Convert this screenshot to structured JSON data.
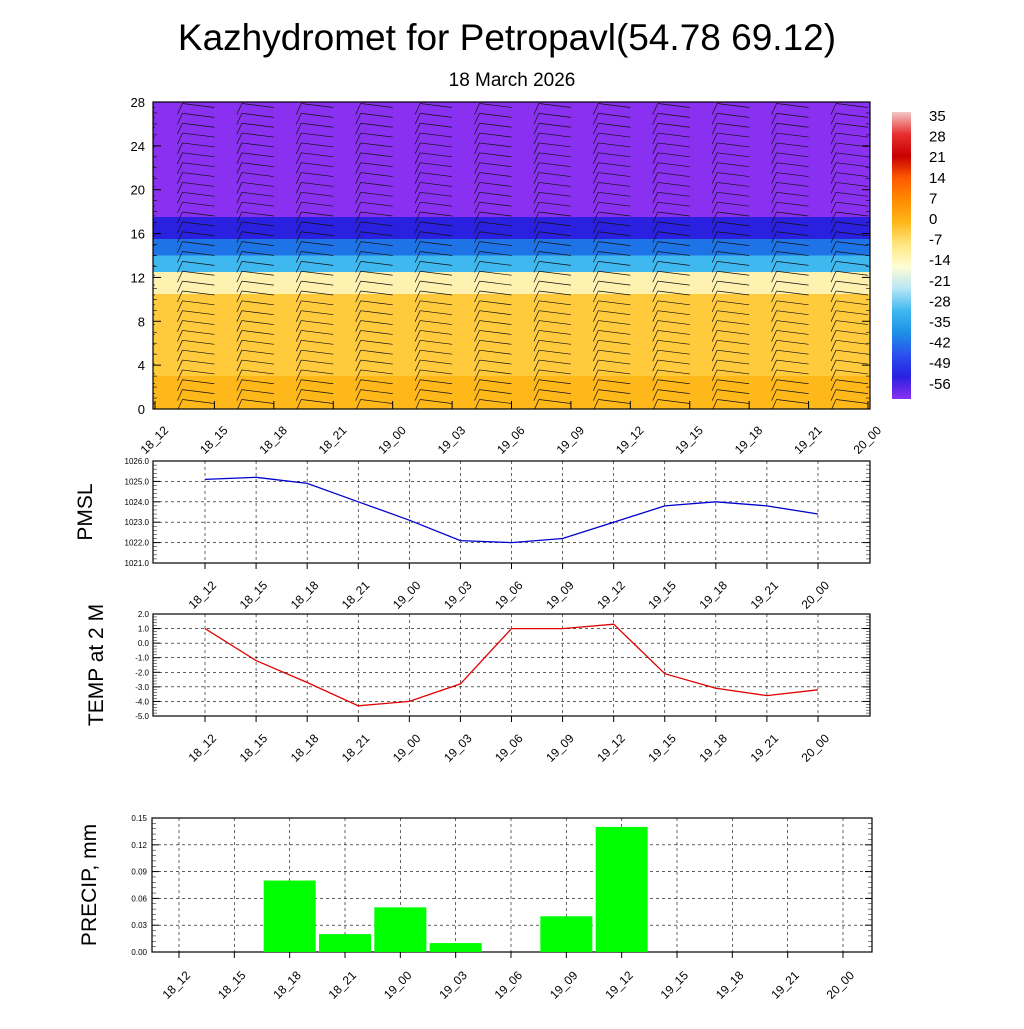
{
  "title": "Kazhydromet for Petropavl(54.78 69.12)",
  "subtitle": "18 March 2026",
  "time_labels": [
    "18_12",
    "18_15",
    "18_18",
    "18_21",
    "19_00",
    "19_03",
    "19_06",
    "19_09",
    "19_12",
    "19_15",
    "19_18",
    "19_21",
    "20_00"
  ],
  "colorbar": {
    "labels": [
      "35",
      "28",
      "21",
      "14",
      "7",
      "0",
      "-7",
      "-14",
      "-21",
      "-28",
      "-35",
      "-42",
      "-49",
      "-56"
    ],
    "colors": [
      "#f4c7c7",
      "#e83030",
      "#c80000",
      "#ff5a00",
      "#ff8c00",
      "#ffb81a",
      "#ffe680",
      "#fffdd6",
      "#b8e6f5",
      "#3fb8f0",
      "#1e90e6",
      "#2a50f0",
      "#2a20e0",
      "#8a30f0"
    ]
  },
  "chart_data": [
    {
      "type": "heatmap",
      "name": "cross-section temperature and wind",
      "x": [
        "18_12",
        "18_15",
        "18_18",
        "18_21",
        "19_00",
        "19_03",
        "19_06",
        "19_09",
        "19_12",
        "19_15",
        "19_18",
        "19_21",
        "20_00"
      ],
      "ylim": [
        0,
        28
      ],
      "yticks": [
        "0",
        "4",
        "8",
        "12",
        "16",
        "20",
        "24",
        "28"
      ],
      "bands": [
        {
          "from": 0,
          "to": 3,
          "color": "#ffb81a"
        },
        {
          "from": 3,
          "to": 10.5,
          "color": "#ffcb3d"
        },
        {
          "from": 10.5,
          "to": 12.5,
          "color": "#fff2b0"
        },
        {
          "from": 12.5,
          "to": 14,
          "color": "#3fb8f0"
        },
        {
          "from": 14,
          "to": 15.5,
          "color": "#1e74e6"
        },
        {
          "from": 15.5,
          "to": 17.5,
          "color": "#2a20e0"
        },
        {
          "from": 17.5,
          "to": 28,
          "color": "#8a30f0"
        }
      ]
    },
    {
      "type": "line",
      "ylabel": "PMSL",
      "x": [
        "18_12",
        "18_15",
        "18_18",
        "18_21",
        "19_00",
        "19_03",
        "19_06",
        "19_09",
        "19_12",
        "19_15",
        "19_18",
        "19_21",
        "20_00"
      ],
      "values": [
        1025.1,
        1025.2,
        1024.9,
        1024.0,
        1023.1,
        1022.1,
        1022.0,
        1022.2,
        1023.0,
        1023.8,
        1024.0,
        1023.8,
        1023.4
      ],
      "ylim": [
        1021.0,
        1026.0
      ],
      "yticks": [
        "1021.0",
        "1022.0",
        "1023.0",
        "1024.0",
        "1025.0",
        "1026.0"
      ],
      "color": "#0000cc"
    },
    {
      "type": "line",
      "ylabel": "TEMP at 2 M",
      "x": [
        "18_12",
        "18_15",
        "18_18",
        "18_21",
        "19_00",
        "19_03",
        "19_06",
        "19_09",
        "19_12",
        "19_15",
        "19_18",
        "19_21",
        "20_00"
      ],
      "values": [
        1.0,
        -1.2,
        -2.7,
        -4.3,
        -4.0,
        -2.8,
        1.0,
        1.0,
        1.3,
        -2.1,
        -3.1,
        -3.6,
        -3.2
      ],
      "ylim": [
        -5.0,
        2.0
      ],
      "yticks": [
        "-5.0",
        "-4.0",
        "-3.0",
        "-2.0",
        "-1.0",
        "0.0",
        "1.0",
        "2.0"
      ],
      "color": "#e00000"
    },
    {
      "type": "bar",
      "ylabel": "PRECIP, mm",
      "categories": [
        "18_12",
        "18_15",
        "18_18",
        "18_21",
        "19_00",
        "19_03",
        "19_06",
        "19_09",
        "19_12",
        "19_15",
        "19_18",
        "19_21",
        "20_00"
      ],
      "values": [
        0,
        0,
        0.08,
        0.02,
        0.05,
        0.01,
        0,
        0.04,
        0.14,
        0,
        0,
        0,
        0
      ],
      "ylim": [
        0,
        0.15
      ],
      "yticks": [
        "0.00",
        "0.03",
        "0.06",
        "0.09",
        "0.12",
        "0.15"
      ],
      "color": "#00ff00"
    }
  ]
}
